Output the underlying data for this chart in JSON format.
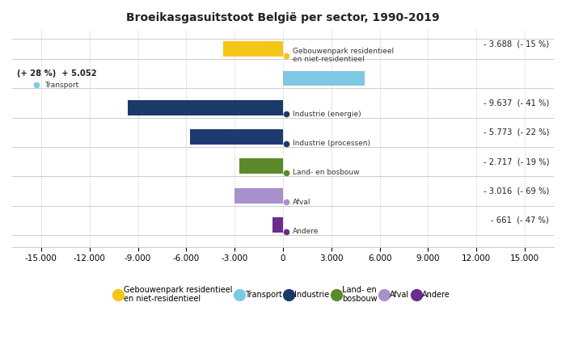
{
  "title": "Broeikasgasuitstoot België per sector, 1990-2019",
  "categories": [
    "Gebouwenpark residentieel\nen niet-residentieel",
    "Transport",
    "Industrie (energie)",
    "Industrie (processen)",
    "Land- en bosbouw",
    "Afval",
    "Andere"
  ],
  "values": [
    -3688,
    5052,
    -9637,
    -5773,
    -2717,
    -3016,
    -661
  ],
  "bar_colors": [
    "#F5C518",
    "#7EC8E3",
    "#1B3A6B",
    "#1E3A70",
    "#5A8A2A",
    "#A890CC",
    "#6B2D8B"
  ],
  "annotations_value": [
    "- 3.688  (- 15 %)",
    "(+ 28 %)  + 5.052",
    "- 9.637  (- 41 %)",
    "- 5.773  (- 22 %)",
    "- 2.717  (- 19 %)",
    "- 3.016  (- 69 %)",
    "- 661  (- 47 %)"
  ],
  "label_texts": [
    "Gebouwenpark residentieel\nen niet-residentieel",
    "Transport",
    "Industrie (energie)",
    "Industrie (processen)",
    "Land- en bosbouw",
    "Afval",
    "Andere"
  ],
  "dot_colors": [
    "#F5C518",
    "#7EC8E3",
    "#1B3A6B",
    "#1E3A70",
    "#5A8A2A",
    "#A890CC",
    "#6B2D8B"
  ],
  "xlim": [
    -16800,
    16800
  ],
  "xticks": [
    -15000,
    -12000,
    -9000,
    -6000,
    -3000,
    0,
    3000,
    6000,
    9000,
    12000,
    15000
  ],
  "xtick_labels": [
    "-15.000",
    "-12.000",
    "-9.000",
    "-6.000",
    "-3.000",
    "0",
    "3.000",
    "6.000",
    "9.000",
    "12.000",
    "15.000"
  ],
  "legend_items": [
    {
      "label": "Gebouwenpark residentieel\nen niet-residentieel",
      "color": "#F5C518"
    },
    {
      "label": "Transport",
      "color": "#7EC8E3"
    },
    {
      "label": "Industrie",
      "color": "#1B3A6B"
    },
    {
      "label": "Land- en\nbosbouw",
      "color": "#5A8A2A"
    },
    {
      "label": "Afval",
      "color": "#A890CC"
    },
    {
      "label": "Andere",
      "color": "#6B2D8B"
    }
  ],
  "background_color": "#FFFFFF"
}
